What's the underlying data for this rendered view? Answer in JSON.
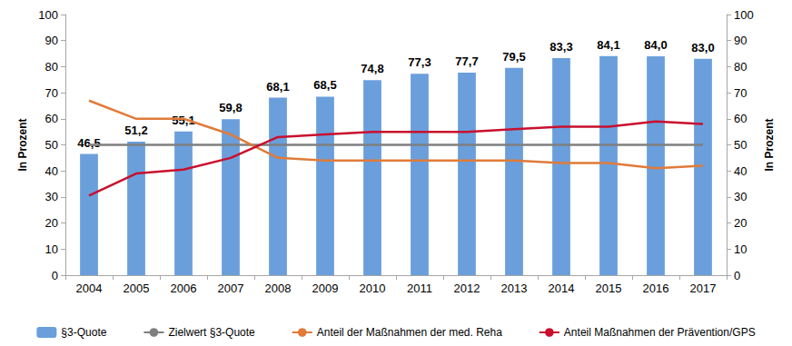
{
  "chart_data": {
    "type": "bar",
    "categories": [
      "2004",
      "2005",
      "2006",
      "2007",
      "2008",
      "2009",
      "2010",
      "2011",
      "2012",
      "2013",
      "2014",
      "2015",
      "2016",
      "2017"
    ],
    "y_label": "In Prozent",
    "y2_label": "In Prozent",
    "ylim": [
      0,
      100
    ],
    "yticks": [
      0,
      10,
      20,
      30,
      40,
      50,
      60,
      70,
      80,
      90,
      100
    ],
    "y2lim": [
      0,
      100
    ],
    "y2ticks": [
      0,
      10,
      20,
      30,
      40,
      50,
      60,
      70,
      80,
      90,
      100
    ],
    "grid": false,
    "legend": "bottom",
    "series": [
      {
        "name": "§3-Quote",
        "type": "bar",
        "color": "#6a9fdc",
        "data_labels": true,
        "values": [
          46.5,
          51.2,
          55.1,
          59.8,
          68.1,
          68.5,
          74.8,
          77.3,
          77.7,
          79.5,
          83.3,
          84.1,
          84.0,
          83.0
        ],
        "value_labels": [
          "46,5",
          "51,2",
          "55,1",
          "59,8",
          "68,1",
          "68,5",
          "74,8",
          "77,3",
          "77,7",
          "79,5",
          "83,3",
          "84,1",
          "84,0",
          "83,0"
        ]
      },
      {
        "name": "Zielwert §3-Quote",
        "type": "line",
        "axis": "y2",
        "color": "#7f7f7f",
        "values": [
          50,
          50,
          50,
          50,
          50,
          50,
          50,
          50,
          50,
          50,
          50,
          50,
          50,
          50
        ]
      },
      {
        "name": "Anteil der Maßnahmen der med. Reha",
        "type": "line",
        "axis": "y2",
        "color": "#e07b39",
        "values": [
          67,
          60,
          60,
          54,
          45,
          44,
          44,
          44,
          44,
          44,
          43,
          43,
          41,
          42
        ]
      },
      {
        "name": "Anteil Maßnahmen der Prävention/GPS",
        "type": "line",
        "axis": "y2",
        "color": "#c8102e",
        "values": [
          30.5,
          39,
          40.5,
          45,
          53,
          54,
          55,
          55,
          55,
          56,
          57,
          57,
          59,
          58
        ]
      }
    ]
  }
}
